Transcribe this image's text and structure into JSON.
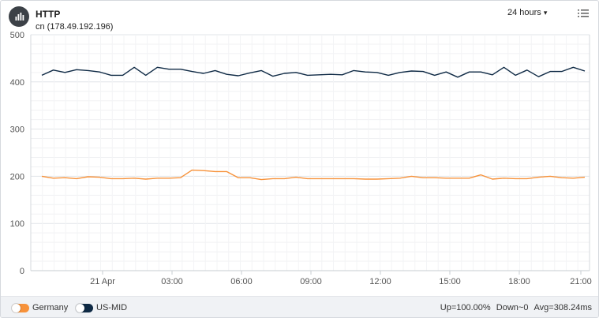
{
  "widget": {
    "title": "HTTP",
    "subtitle": "cn (178.49.192.196)",
    "time_range": "24 hours",
    "time_range_caret": "▾",
    "drag_handle": "....",
    "icons": {
      "header": "bar-chart-icon",
      "menu": "menu-list-icon"
    }
  },
  "legend": [
    {
      "name": "Germany",
      "color": "#f7923a",
      "enabled": true
    },
    {
      "name": "US-MID",
      "color": "#0f2a45",
      "enabled": true
    }
  ],
  "stats": {
    "up_label": "Up=",
    "up_value": "100.00%",
    "down_label": "Down~",
    "down_value": "0",
    "avg_label": "Avg=",
    "avg_value": "308.24ms"
  },
  "chart_data": {
    "type": "line",
    "ylim": [
      0,
      500
    ],
    "yticks": [
      "0",
      "100",
      "200",
      "300",
      "400",
      "500"
    ],
    "xticks": [
      "21 Apr",
      "03:00",
      "06:00",
      "09:00",
      "12:00",
      "15:00",
      "18:00",
      "21:00"
    ],
    "grid": true,
    "legend_position": "bottom-left",
    "series": [
      {
        "name": "US-MID",
        "color": "#0f2a45",
        "values": [
          414,
          425,
          420,
          426,
          424,
          421,
          414,
          414,
          431,
          414,
          431,
          427,
          427,
          422,
          418,
          424,
          416,
          413,
          419,
          424,
          412,
          418,
          420,
          414,
          415,
          416,
          415,
          424,
          421,
          420,
          414,
          420,
          423,
          422,
          414,
          421,
          410,
          421,
          421,
          415,
          431,
          414,
          425,
          411,
          422,
          422,
          431,
          423
        ]
      },
      {
        "name": "Germany",
        "color": "#f7923a",
        "values": [
          200,
          196,
          197,
          195,
          199,
          198,
          195,
          195,
          196,
          194,
          196,
          196,
          197,
          213,
          212,
          210,
          210,
          197,
          197,
          193,
          195,
          195,
          198,
          195,
          195,
          195,
          195,
          195,
          194,
          194,
          195,
          196,
          200,
          197,
          197,
          196,
          196,
          196,
          203,
          194,
          196,
          195,
          195,
          198,
          200,
          197,
          196,
          198
        ]
      }
    ]
  }
}
